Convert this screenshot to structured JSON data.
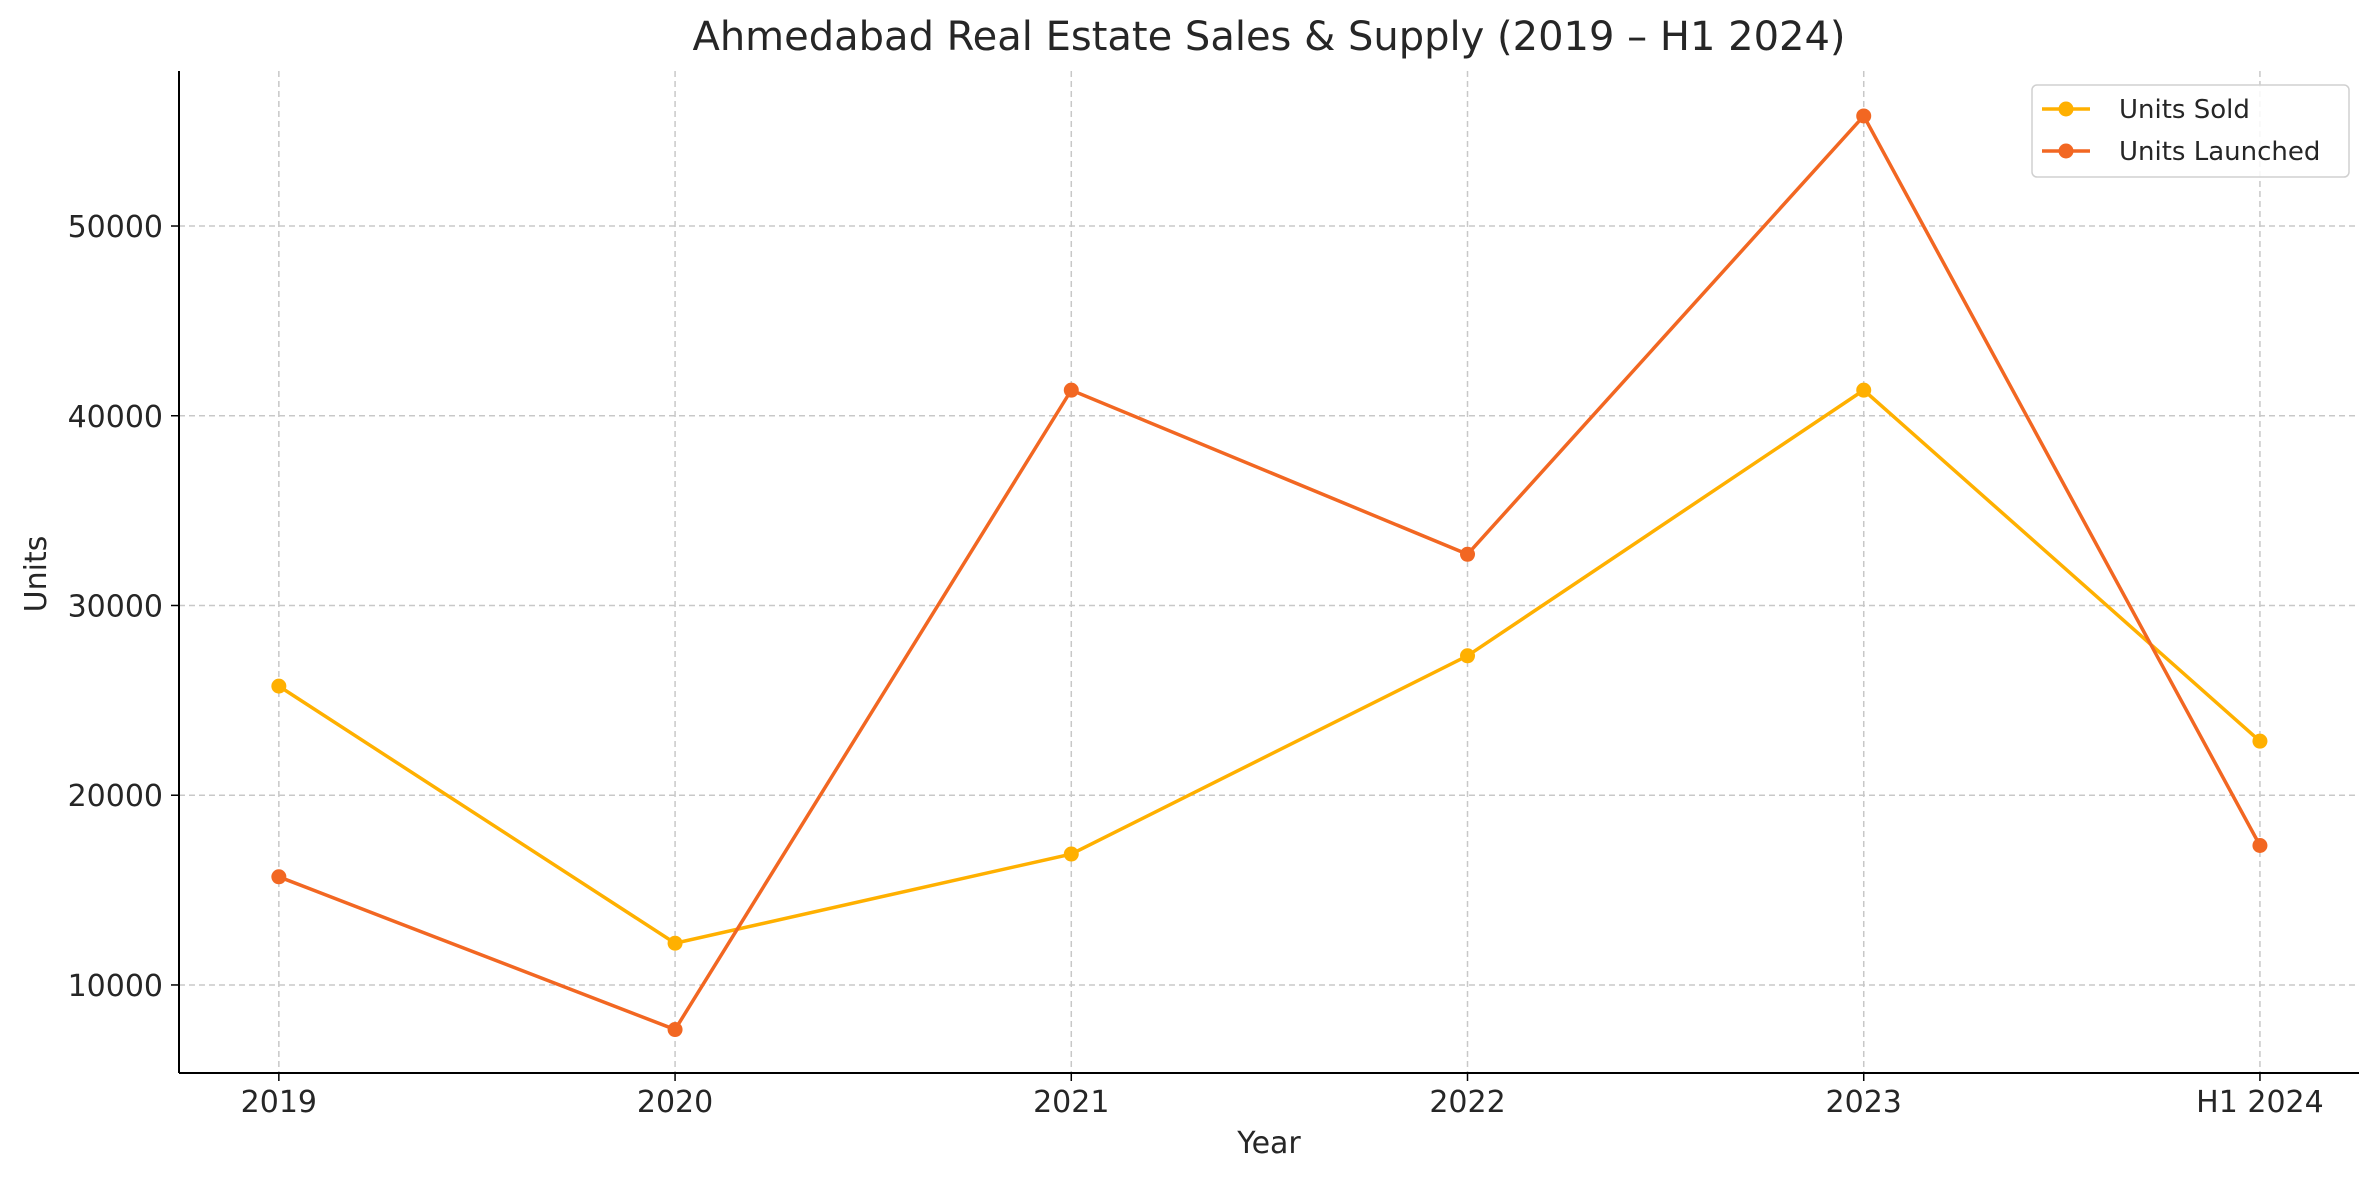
{
  "chart_data": {
    "type": "line",
    "title": "Ahmedabad Real Estate Sales & Supply (2019 – H1 2024)",
    "xlabel": "Year",
    "ylabel": "Units",
    "categories": [
      "2019",
      "2020",
      "2021",
      "2022",
      "2023",
      "H1 2024"
    ],
    "yticks": [
      10000,
      20000,
      30000,
      40000,
      50000
    ],
    "ylim": [
      5360,
      58170
    ],
    "grid": true,
    "legend_position": "top-right",
    "series": [
      {
        "name": "Units Sold",
        "color": "#FFB000",
        "values": [
          25750,
          12200,
          16900,
          27350,
          41350,
          22850
        ]
      },
      {
        "name": "Units Launched",
        "color": "#F26722",
        "values": [
          15700,
          7650,
          41350,
          32700,
          55800,
          17350
        ]
      }
    ]
  }
}
